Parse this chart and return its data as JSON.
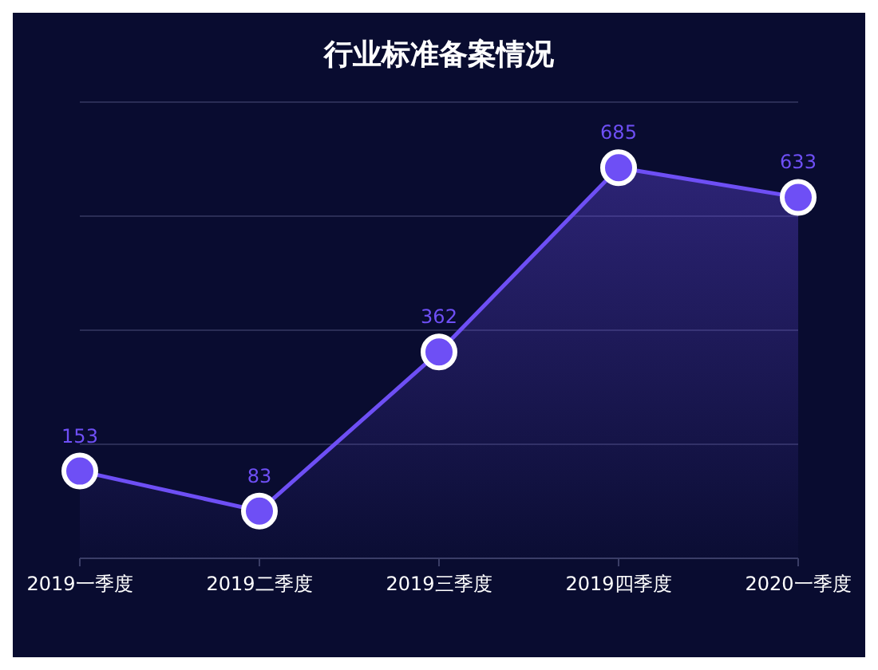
{
  "chart_data": {
    "type": "area",
    "title": "行业标准备案情况",
    "categories": [
      "2019一季度",
      "2019二季度",
      "2019三季度",
      "2019四季度",
      "2020一季度"
    ],
    "series": [
      {
        "color": "#6e4ff5",
        "values": [
          153,
          83,
          362,
          685,
          633
        ]
      }
    ],
    "ylim": [
      0,
      800
    ],
    "yticks": [
      {
        "value": 0,
        "label": null
      },
      {
        "value": 200,
        "label": null
      },
      {
        "value": 400,
        "label": null
      },
      {
        "value": 600,
        "label": null
      },
      {
        "value": 800,
        "label": null
      }
    ],
    "tick_labels": "x",
    "grid": "y",
    "marker": "circle",
    "data_labels": true
  }
}
